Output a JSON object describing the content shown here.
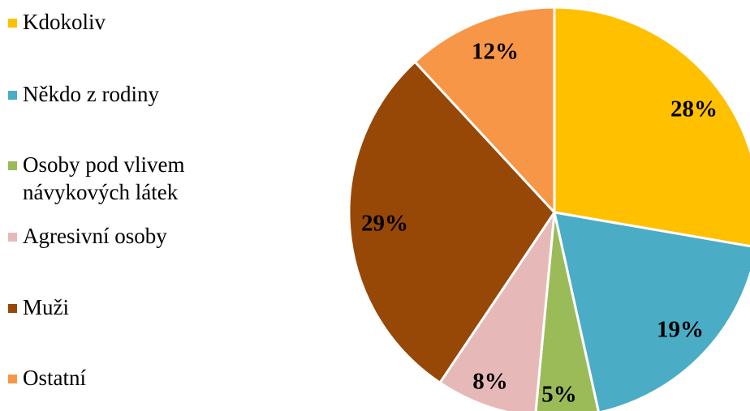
{
  "chart_data": {
    "type": "pie",
    "title": "",
    "legend_position": "left",
    "start_angle_deg": 0,
    "direction": "clockwise",
    "slices": [
      {
        "label": "Kdokoliv",
        "value": 28,
        "data_label": "28%",
        "color": "#FFC000"
      },
      {
        "label": "Někdo z rodiny",
        "value": 19,
        "data_label": "19%",
        "color": "#4BACC6"
      },
      {
        "label": "Osoby pod vlivem návykových látek",
        "value": 5,
        "data_label": "5%",
        "color": "#9BBB59"
      },
      {
        "label": "Agresivní osoby",
        "value": 8,
        "data_label": "8%",
        "color": "#E6B9B8"
      },
      {
        "label": "Muži",
        "value": 29,
        "data_label": "29%",
        "color": "#974706"
      },
      {
        "label": "Ostatní",
        "value": 12,
        "data_label": "12%",
        "color": "#F79646"
      }
    ]
  }
}
